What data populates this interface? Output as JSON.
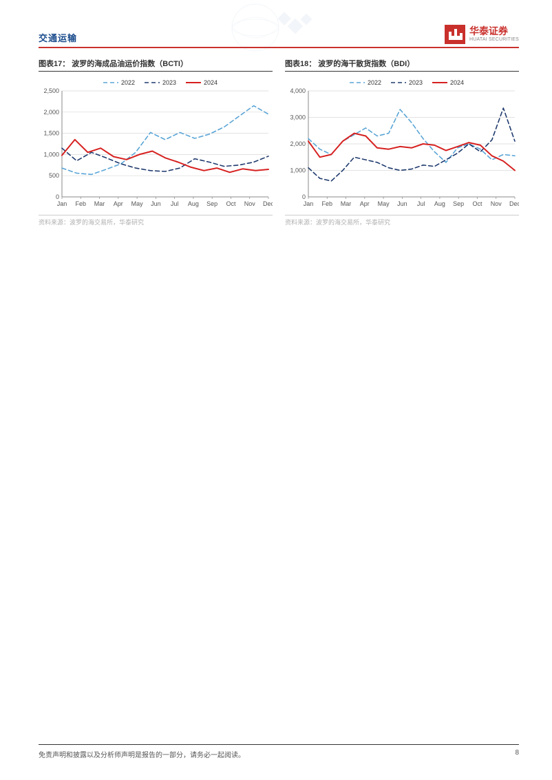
{
  "header": {
    "section_title": "交通运输",
    "border_color": "#c9302c",
    "title_color": "#1a4b8c",
    "brand_cn": "华泰证券",
    "brand_en": "HUATAI SECURITIES",
    "brand_color": "#c9302c"
  },
  "watermark": {
    "color": "#3b6aa0"
  },
  "chart_left": {
    "title": "图表17：  波罗的海成品油运价指数（BCTI）",
    "source": "资料来源：波罗的海交易所，华泰研究",
    "type": "line",
    "x_labels": [
      "Jan",
      "Feb",
      "Mar",
      "Apr",
      "May",
      "Jun",
      "Jul",
      "Aug",
      "Sep",
      "Oct",
      "Nov",
      "Dec"
    ],
    "y_ticks": [
      0,
      500,
      1000,
      1500,
      2000,
      2500
    ],
    "ylim": [
      0,
      2500
    ],
    "grid_color": "#d9d9d9",
    "axis_color": "#888888",
    "tick_font_size": 9,
    "legend": [
      {
        "label": "2022",
        "color": "#5aa5d6",
        "dash": "6,4",
        "width": 1.6
      },
      {
        "label": "2023",
        "color": "#1f3a6e",
        "dash": "6,4",
        "width": 1.6
      },
      {
        "label": "2024",
        "color": "#d6201f",
        "dash": "",
        "width": 2.0
      }
    ],
    "series": {
      "2022": [
        680,
        560,
        530,
        650,
        780,
        1050,
        1520,
        1350,
        1520,
        1380,
        1480,
        1650,
        1900,
        2150,
        1950
      ],
      "2023": [
        1150,
        850,
        1050,
        920,
        780,
        680,
        620,
        600,
        680,
        900,
        820,
        720,
        750,
        820,
        960
      ],
      "2024": [
        980,
        1350,
        1050,
        1150,
        950,
        880,
        1000,
        1080,
        920,
        820,
        700,
        620,
        680,
        580,
        660,
        620,
        650
      ]
    }
  },
  "chart_right": {
    "title": "图表18：  波罗的海干散货指数（BDI）",
    "source": "资料来源：波罗的海交易所，华泰研究",
    "type": "line",
    "x_labels": [
      "Jan",
      "Feb",
      "Mar",
      "Apr",
      "May",
      "Jun",
      "Jul",
      "Aug",
      "Sep",
      "Oct",
      "Nov",
      "Dec"
    ],
    "y_ticks": [
      0,
      1000,
      2000,
      3000,
      4000
    ],
    "ylim": [
      0,
      4000
    ],
    "grid_color": "#d9d9d9",
    "axis_color": "#888888",
    "tick_font_size": 9,
    "legend": [
      {
        "label": "2022",
        "color": "#5aa5d6",
        "dash": "6,4",
        "width": 1.6
      },
      {
        "label": "2023",
        "color": "#1f3a6e",
        "dash": "6,4",
        "width": 1.6
      },
      {
        "label": "2024",
        "color": "#d6201f",
        "dash": "",
        "width": 2.0
      }
    ],
    "series": {
      "2022": [
        2200,
        1800,
        1600,
        2100,
        2350,
        2600,
        2300,
        2400,
        3300,
        2800,
        2200,
        1700,
        1300,
        1850,
        2000,
        1800,
        1400,
        1600,
        1550
      ],
      "2023": [
        1100,
        700,
        600,
        1000,
        1500,
        1400,
        1300,
        1100,
        1000,
        1050,
        1200,
        1150,
        1400,
        1650,
        2000,
        1700,
        2150,
        3350,
        2100
      ],
      "2024": [
        2100,
        1500,
        1600,
        2100,
        2400,
        2300,
        1850,
        1800,
        1900,
        1850,
        2000,
        1950,
        1750,
        1900,
        2050,
        1950,
        1550,
        1350,
        1000
      ]
    }
  },
  "footer": {
    "disclaimer": "免责声明和披露以及分析师声明是报告的一部分，请务必一起阅读。",
    "page_number": "8"
  }
}
